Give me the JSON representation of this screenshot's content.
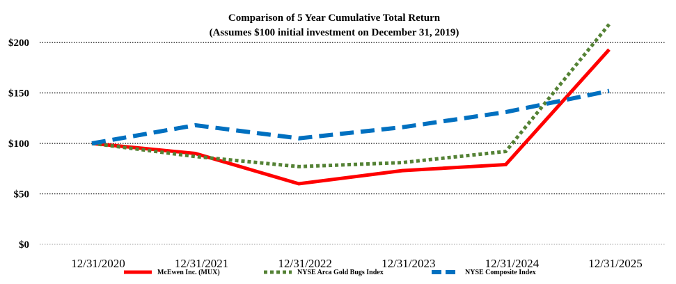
{
  "chart_data": {
    "type": "line",
    "title": "Comparison of 5 Year Cumulative Total Return",
    "subtitle": "(Assumes $100 initial investment on December 31, 2019)",
    "categories": [
      "12/31/2020",
      "12/31/2021",
      "12/31/2022",
      "12/31/2023",
      "12/31/2024",
      "12/31/2025"
    ],
    "y_ticks": [
      {
        "value": 0,
        "label": "$0"
      },
      {
        "value": 50,
        "label": "$50"
      },
      {
        "value": 100,
        "label": "$100"
      },
      {
        "value": 150,
        "label": "$150"
      },
      {
        "value": 200,
        "label": "$200"
      }
    ],
    "ylim": [
      0,
      200
    ],
    "grid": true,
    "legend_position": "bottom",
    "series": [
      {
        "name": "McEwen Inc. (MUX)",
        "values": [
          100,
          90,
          60,
          73,
          79,
          193
        ],
        "color": "#ff0000",
        "style": "solid"
      },
      {
        "name": "NYSE Arca Gold Bugs Index",
        "values": [
          100,
          87,
          77,
          81,
          92,
          218
        ],
        "color": "#548235",
        "style": "dotted"
      },
      {
        "name": "NYSE Composite Index",
        "values": [
          100,
          118,
          105,
          116,
          131,
          152
        ],
        "color": "#0070c0",
        "style": "dashed"
      }
    ]
  }
}
